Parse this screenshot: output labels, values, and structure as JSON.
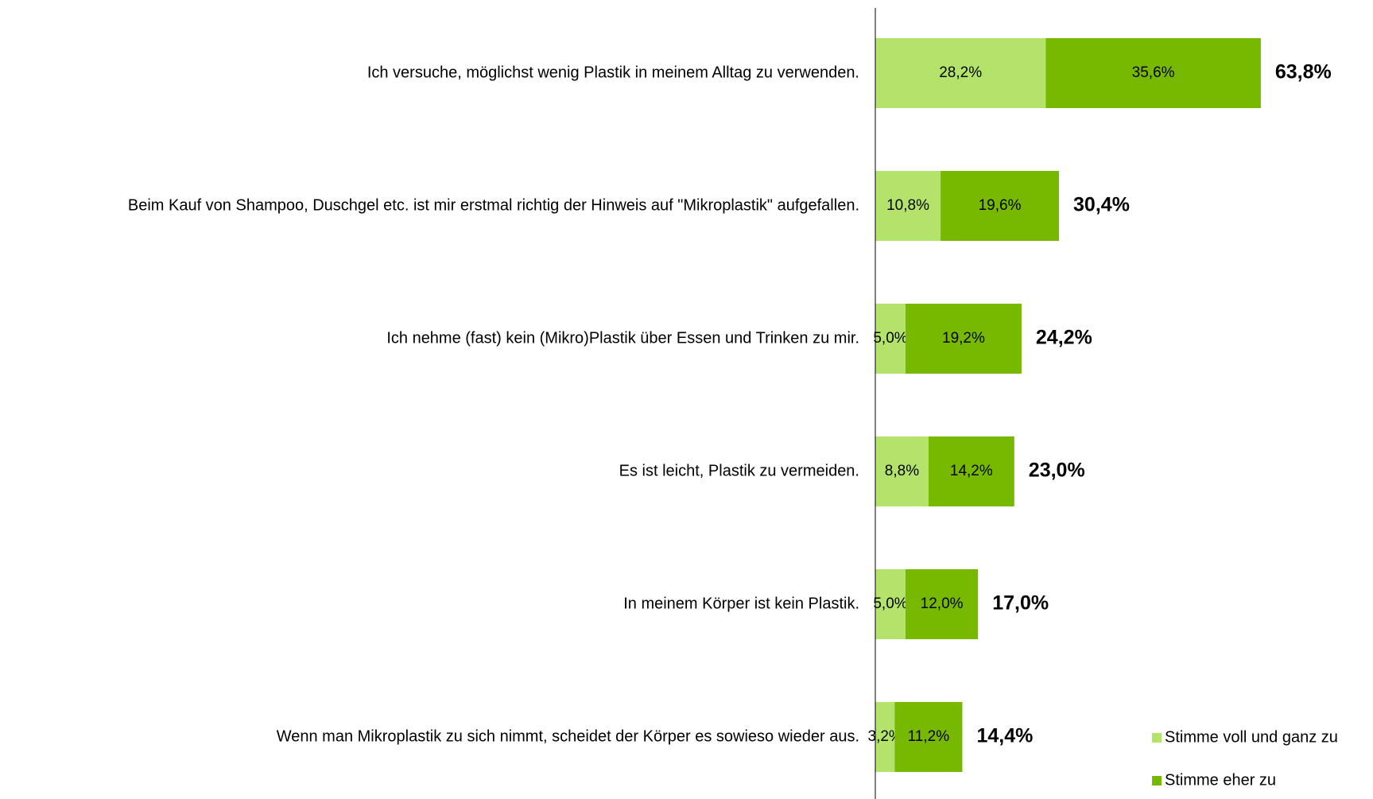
{
  "chart_data": {
    "type": "stacked_barh",
    "categories": [
      "Ich versuche, möglichst wenig Plastik in meinem Alltag zu verwenden.",
      "Beim Kauf von Shampoo, Duschgel etc. ist mir erstmal richtig der Hinweis auf \"Mikroplastik\" aufgefallen.",
      "Ich nehme (fast) kein (Mikro)Plastik über Essen und Trinken zu mir.",
      "Es ist leicht, Plastik zu vermeiden.",
      "In meinem Körper ist kein Plastik.",
      "Wenn man Mikroplastik zu sich nimmt, scheidet der Körper es sowieso wieder aus."
    ],
    "series": [
      {
        "name": "Stimme voll und ganz zu",
        "color": "#b3e36b",
        "values": [
          28.2,
          10.8,
          5.0,
          8.8,
          5.0,
          3.2
        ],
        "value_labels": [
          "28,2%",
          "10,8%",
          "5,0%",
          "8,8%",
          "5,0%",
          "3,2%"
        ]
      },
      {
        "name": "Stimme eher zu",
        "color": "#77b900",
        "values": [
          35.6,
          19.6,
          19.2,
          14.2,
          12.0,
          11.2
        ],
        "value_labels": [
          "35,6%",
          "19,6%",
          "19,2%",
          "14,2%",
          "12,0%",
          "11,2%"
        ]
      }
    ],
    "totals": [
      63.8,
      30.4,
      24.2,
      23.0,
      17.0,
      14.4
    ],
    "total_labels": [
      "63,8%",
      "30,4%",
      "24,2%",
      "23,0%",
      "17,0%",
      "14,4%"
    ],
    "xlim": [
      0,
      80
    ],
    "legend": "lower right"
  }
}
